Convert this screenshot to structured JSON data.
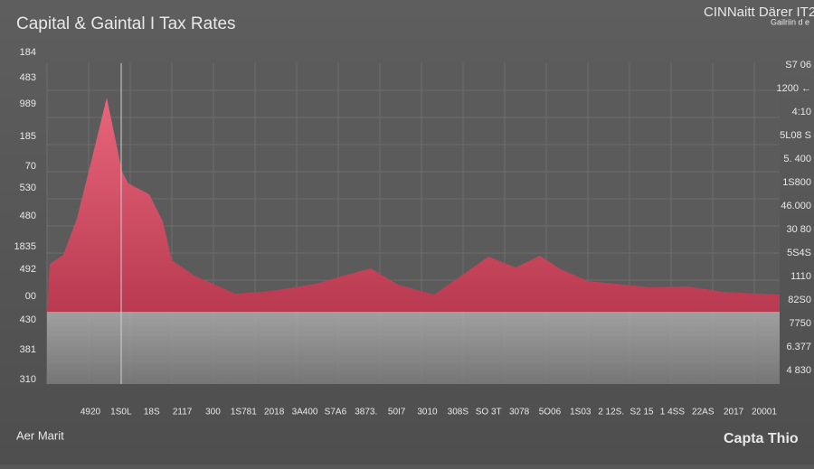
{
  "header": {
    "title": "Capital & Gaintal I Tax Rates",
    "brand": "CINNaitt Därer IT2",
    "brand_sub": "Gailriin d e"
  },
  "left_labels": [
    "184",
    "483",
    "989",
    "185",
    "70",
    "530",
    "480",
    "1835",
    "492",
    "00",
    "430",
    "381",
    "310"
  ],
  "right_labels": [
    "S7 06",
    "1200 ←",
    "4:10",
    "5L08 S",
    "5. 400",
    "1S800",
    "46.000",
    "30 80",
    "5S4S",
    "1110",
    "82S0",
    "7750",
    "6.377",
    "4 830"
  ],
  "x_labels": [
    "4920",
    "1S0L",
    "18S",
    "2117",
    "300",
    "1S781",
    "2018",
    "3A400",
    "S7A6",
    "3873.",
    "50I7",
    "3010",
    "308S",
    "SO 3T",
    "3078",
    "5O06",
    "1S03",
    "2 12S.",
    "S2 15",
    "1 4SS",
    "22AS",
    "2017",
    "20001"
  ],
  "footer": {
    "left": "Aer Marit",
    "right": "Capta Thio"
  }
}
